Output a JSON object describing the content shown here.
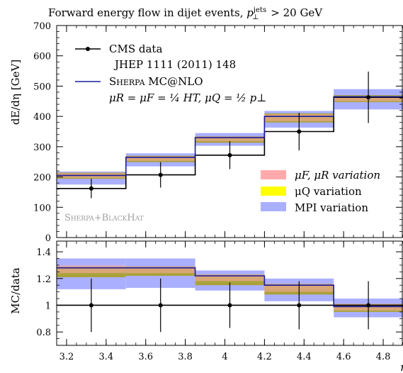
{
  "chart_data": {
    "type": "step",
    "title_main": "Forward energy flow in dijet events, ",
    "title_p": "p",
    "title_sub": "⊥",
    "title_sup": "jets",
    "title_rest": " > 20 GeV",
    "xlabel": "η",
    "ylabel_top": "dE/dη [GeV]",
    "ylabel_bottom": "MC/data",
    "watermark": "Sherpa+BlackHat",
    "xlim": [
      3.15,
      4.9
    ],
    "bin_edges": [
      3.15,
      3.5,
      3.85,
      4.2,
      4.55,
      4.9
    ],
    "x_ticks": [
      "3.2",
      "3.4",
      "3.6",
      "3.8",
      "4",
      "4.2",
      "4.4",
      "4.6",
      "4.8"
    ],
    "x_tick_values": [
      3.2,
      3.4,
      3.6,
      3.8,
      4.0,
      4.2,
      4.4,
      4.6,
      4.8
    ],
    "top": {
      "ylim": [
        0,
        700
      ],
      "y_ticks": [
        "0",
        "100",
        "200",
        "300",
        "400",
        "500",
        "600",
        "700"
      ],
      "y_tick_values": [
        0,
        100,
        200,
        300,
        400,
        500,
        600,
        700
      ],
      "data": {
        "name": "CMS data",
        "x": [
          3.325,
          3.675,
          4.025,
          4.375,
          4.725
        ],
        "y": [
          162,
          207,
          272,
          350,
          463
        ],
        "err": [
          32,
          42,
          46,
          62,
          85
        ]
      },
      "mc": {
        "name": "Sherpa MC@NLO",
        "values": [
          205,
          265,
          330,
          400,
          465
        ],
        "mpi_band": [
          [
            175,
            218
          ],
          [
            235,
            278
          ],
          [
            303,
            345
          ],
          [
            363,
            418
          ],
          [
            423,
            490
          ]
        ],
        "muq_band": [
          [
            194,
            214
          ],
          [
            249,
            270
          ],
          [
            313,
            334
          ],
          [
            380,
            410
          ],
          [
            447,
            470
          ]
        ],
        "muf_band": [
          [
            197,
            212
          ],
          [
            253,
            268
          ],
          [
            318,
            333
          ],
          [
            384,
            407
          ],
          [
            450,
            467
          ]
        ]
      },
      "legend_data_label": "CMS data",
      "legend_ref": "JHEP 1111 (2011) 148",
      "legend_mc_label": "Sherpa MC@NLO",
      "legend_scale_label": "μR = μF = ¼ HT,  μQ = ½ p⊥",
      "variation_labels": [
        "μF, μR variation",
        "μQ variation",
        "MPI variation"
      ]
    },
    "bottom": {
      "ylim": [
        0.7,
        1.48
      ],
      "y_ticks": [
        "0.8",
        "1",
        "1.2",
        "1.4"
      ],
      "y_tick_values": [
        0.8,
        1.0,
        1.2,
        1.4
      ],
      "ratio": [
        1.28,
        1.28,
        1.22,
        1.15,
        0.99
      ],
      "data_err": [
        0.2,
        0.2,
        0.17,
        0.18,
        0.18
      ],
      "mpi_band": [
        [
          1.12,
          1.35
        ],
        [
          1.13,
          1.35
        ],
        [
          1.11,
          1.26
        ],
        [
          1.03,
          1.2
        ],
        [
          0.91,
          1.05
        ]
      ],
      "muq_band": [
        [
          1.21,
          1.29
        ],
        [
          1.22,
          1.29
        ],
        [
          1.15,
          1.23
        ],
        [
          1.08,
          1.16
        ],
        [
          0.95,
          1.01
        ]
      ],
      "muf_band": [
        [
          1.24,
          1.3
        ],
        [
          1.24,
          1.29
        ],
        [
          1.18,
          1.23
        ],
        [
          1.1,
          1.16
        ],
        [
          0.96,
          1.01
        ]
      ]
    },
    "colors": {
      "mpi": "#aab0ff",
      "muq": "#ffff00",
      "muf": "#ffaaaa",
      "olive": "#a9a23a",
      "mc_line": "#1a1aa0",
      "data": "#000000"
    }
  }
}
